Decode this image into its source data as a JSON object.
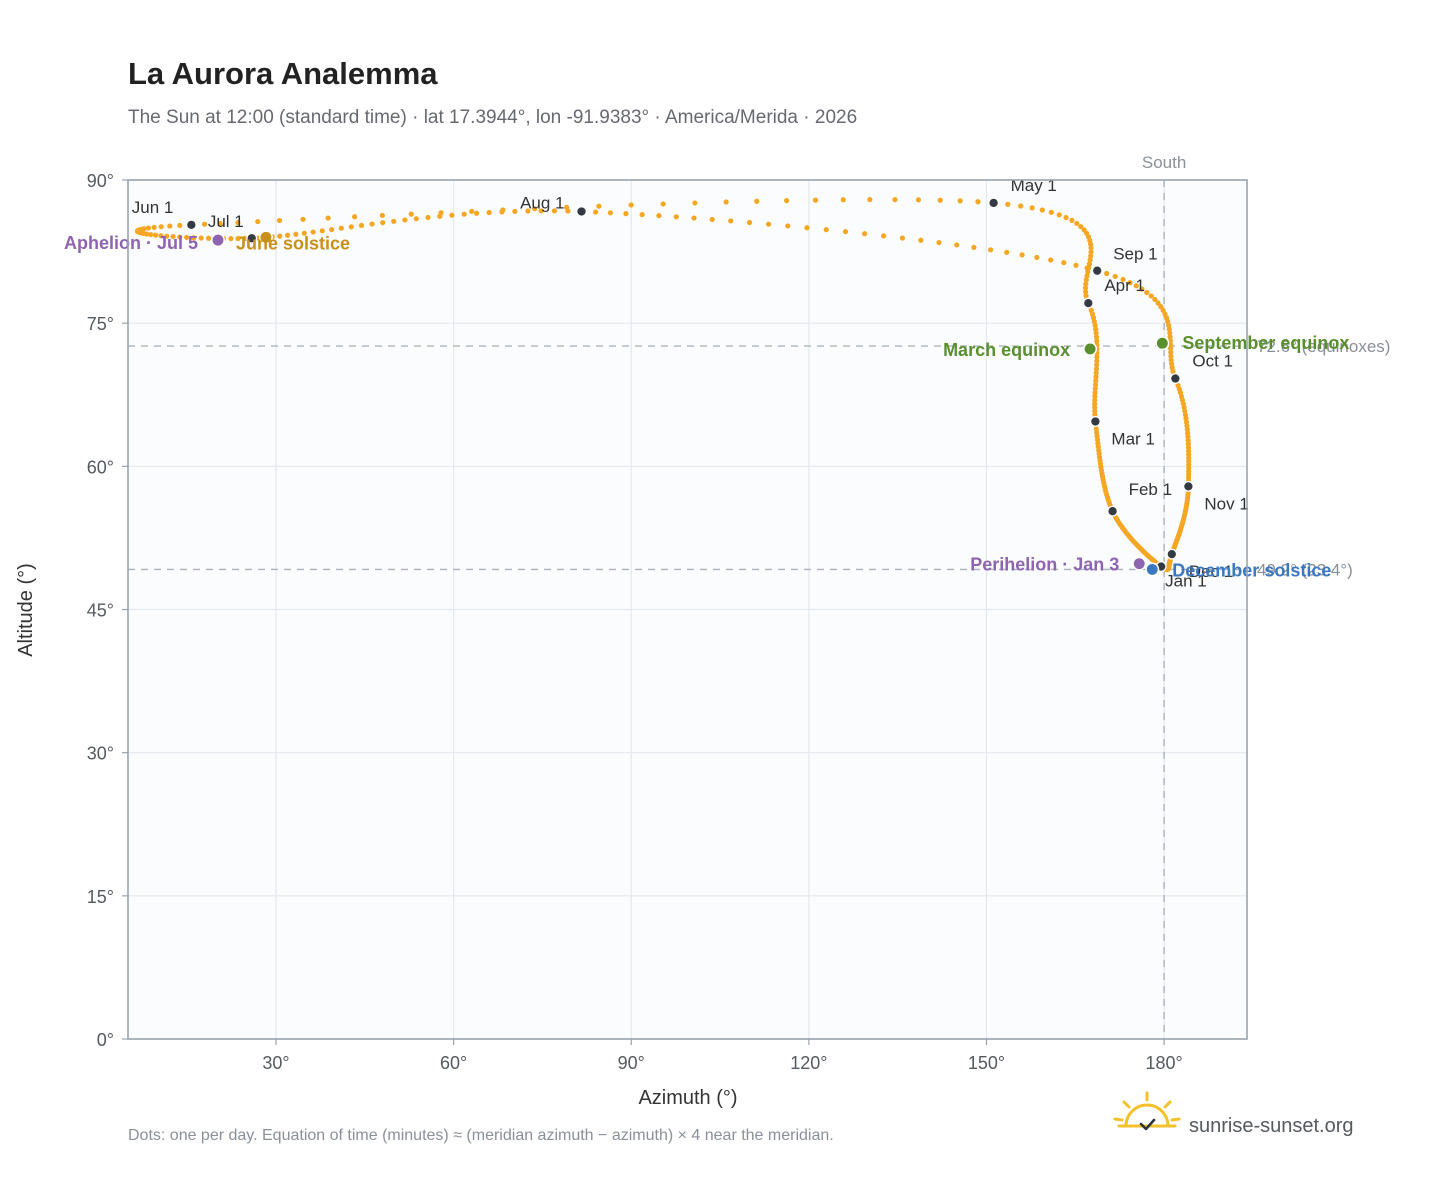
{
  "header": {
    "title": "La Aurora Analemma",
    "subtitle": "The Sun at 12:00 (standard time) · lat 17.3944°, lon -91.9383° · America/Merida · 2026"
  },
  "footer": {
    "note": "Dots: one per day. Equation of time (minutes) ≈ (meridian azimuth − azimuth) × 4 near the meridian.",
    "brand": "sunrise-sunset.org"
  },
  "chart_data": {
    "type": "scatter",
    "xlabel": "Azimuth (°)",
    "ylabel": "Altitude (°)",
    "xlim": [
      5,
      194
    ],
    "ylim": [
      0,
      90
    ],
    "x_ticks": [
      30,
      60,
      90,
      120,
      150,
      180
    ],
    "y_ticks": [
      0,
      15,
      30,
      45,
      60,
      75,
      90
    ],
    "x_tick_labels": [
      "30°",
      "60°",
      "90°",
      "120°",
      "150°",
      "180°"
    ],
    "y_tick_labels": [
      "0°",
      "15°",
      "30°",
      "45°",
      "60°",
      "75°",
      "90°"
    ],
    "grid": true,
    "meridian": {
      "azimuth": 180,
      "label": "South"
    },
    "reference_lines": [
      {
        "altitude": 72.6,
        "label": "72.6° (equinoxes)"
      },
      {
        "altitude": 49.2,
        "label": "49.2° (23.4°)"
      }
    ],
    "month_markers": [
      {
        "label": "Jan 1",
        "az": 179.5,
        "alt": 49.5
      },
      {
        "label": "Feb 1",
        "az": 171.3,
        "alt": 55.3
      },
      {
        "label": "Mar 1",
        "az": 168.4,
        "alt": 64.7
      },
      {
        "label": "Apr 1",
        "az": 167.2,
        "alt": 77.1
      },
      {
        "label": "May 1",
        "az": 151.2,
        "alt": 87.6
      },
      {
        "label": "Jun 1",
        "az": 15.7,
        "alt": 85.3
      },
      {
        "label": "Jul 1",
        "az": 25.9,
        "alt": 83.9
      },
      {
        "label": "Aug 1",
        "az": 81.6,
        "alt": 86.7
      },
      {
        "label": "Sep 1",
        "az": 168.7,
        "alt": 80.5
      },
      {
        "label": "Oct 1",
        "az": 181.9,
        "alt": 69.2
      },
      {
        "label": "Nov 1",
        "az": 184.1,
        "alt": 57.9
      },
      {
        "label": "Dec 1",
        "az": 181.3,
        "alt": 50.8
      }
    ],
    "events": [
      {
        "label": "March equinox",
        "az": 167.5,
        "alt": 72.3,
        "color": "#5a8f2e"
      },
      {
        "label": "June solstice",
        "az": 28.3,
        "alt": 84.0,
        "color": "#c8901a"
      },
      {
        "label": "September equinox",
        "az": 179.7,
        "alt": 72.9,
        "color": "#5a8f2e"
      },
      {
        "label": "December solstice",
        "az": 178.0,
        "alt": 49.2,
        "color": "#3b78c0"
      },
      {
        "label": "Perihelion · Jan 3",
        "az": 175.8,
        "alt": 49.8,
        "color": "#8e63b0"
      },
      {
        "label": "Aphelion · Jul 5",
        "az": 20.2,
        "alt": 83.7,
        "color": "#8e63b0"
      }
    ],
    "colors": {
      "dots": "#f5a623",
      "month_marker": "#333a44",
      "grid": "#e4e9ef",
      "plot_background": "#fafcfe",
      "frame": "#9aa3ad",
      "reference_line": "#aab3bd"
    }
  }
}
